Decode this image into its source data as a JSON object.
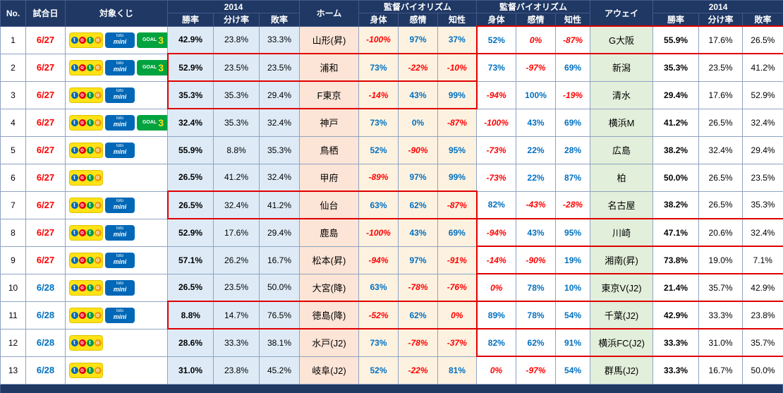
{
  "header": {
    "no": "No.",
    "date": "試合日",
    "lottery": "対象くじ",
    "season_home": "2014",
    "season_away": "2014",
    "home": "ホーム",
    "away": "アウェイ",
    "bio_home": "監督バイオリズム",
    "bio_away": "監督バイオリズム",
    "win": "勝率",
    "draw": "分け率",
    "loss": "敗率",
    "body": "身体",
    "emotion": "感情",
    "intellect": "知性"
  },
  "badges": {
    "toto": "toto",
    "mini_top": "toto",
    "mini_bottom": "mini",
    "goal3_text": "GOAL",
    "goal3_num": "3"
  },
  "colors": {
    "header_bg": "#1F3864",
    "date_early": "#FF0000",
    "date_late": "#0070C0",
    "bio_positive": "#0070C0",
    "bio_negative": "#FF0000",
    "highlight_box": "#E00000"
  },
  "rows": [
    {
      "no": "1",
      "date": "6/27",
      "date_color": "red",
      "lotteries": [
        "toto",
        "mini",
        "goal3"
      ],
      "home_stats": [
        "42.9%",
        "23.8%",
        "33.3%"
      ],
      "home_team": "山形(昇)",
      "home_bio": [
        {
          "v": "-100%",
          "neg": true
        },
        {
          "v": "97%",
          "neg": false
        },
        {
          "v": "37%",
          "neg": false
        }
      ],
      "away_bio": [
        {
          "v": "52%",
          "neg": false
        },
        {
          "v": "0%",
          "neg": true
        },
        {
          "v": "-87%",
          "neg": true
        }
      ],
      "away_team": "G大阪",
      "away_stats": [
        "55.9%",
        "17.6%",
        "26.5%"
      ],
      "highlight": "away"
    },
    {
      "no": "2",
      "date": "6/27",
      "date_color": "red",
      "lotteries": [
        "toto",
        "mini",
        "goal3"
      ],
      "home_stats": [
        "52.9%",
        "23.5%",
        "23.5%"
      ],
      "home_team": "浦和",
      "home_bio": [
        {
          "v": "73%",
          "neg": false
        },
        {
          "v": "-22%",
          "neg": true
        },
        {
          "v": "-10%",
          "neg": true
        }
      ],
      "away_bio": [
        {
          "v": "73%",
          "neg": false
        },
        {
          "v": "-97%",
          "neg": true
        },
        {
          "v": "69%",
          "neg": false
        }
      ],
      "away_team": "新潟",
      "away_stats": [
        "35.3%",
        "23.5%",
        "41.2%"
      ],
      "highlight": "home"
    },
    {
      "no": "3",
      "date": "6/27",
      "date_color": "red",
      "lotteries": [
        "toto",
        "mini"
      ],
      "home_stats": [
        "35.3%",
        "35.3%",
        "29.4%"
      ],
      "home_team": "F東京",
      "home_bio": [
        {
          "v": "-14%",
          "neg": true
        },
        {
          "v": "43%",
          "neg": false
        },
        {
          "v": "99%",
          "neg": false
        }
      ],
      "away_bio": [
        {
          "v": "-94%",
          "neg": true
        },
        {
          "v": "100%",
          "neg": false
        },
        {
          "v": "-19%",
          "neg": true
        }
      ],
      "away_team": "清水",
      "away_stats": [
        "29.4%",
        "17.6%",
        "52.9%"
      ],
      "highlight": "home"
    },
    {
      "no": "4",
      "date": "6/27",
      "date_color": "red",
      "lotteries": [
        "toto",
        "mini",
        "goal3"
      ],
      "home_stats": [
        "32.4%",
        "35.3%",
        "32.4%"
      ],
      "home_team": "神戸",
      "home_bio": [
        {
          "v": "73%",
          "neg": false
        },
        {
          "v": "0%",
          "neg": false
        },
        {
          "v": "-87%",
          "neg": true
        }
      ],
      "away_bio": [
        {
          "v": "-100%",
          "neg": true
        },
        {
          "v": "43%",
          "neg": false
        },
        {
          "v": "69%",
          "neg": false
        }
      ],
      "away_team": "横浜M",
      "away_stats": [
        "41.2%",
        "26.5%",
        "32.4%"
      ],
      "highlight": null
    },
    {
      "no": "5",
      "date": "6/27",
      "date_color": "red",
      "lotteries": [
        "toto",
        "mini"
      ],
      "home_stats": [
        "55.9%",
        "8.8%",
        "35.3%"
      ],
      "home_team": "鳥栖",
      "home_bio": [
        {
          "v": "52%",
          "neg": false
        },
        {
          "v": "-90%",
          "neg": true
        },
        {
          "v": "95%",
          "neg": false
        }
      ],
      "away_bio": [
        {
          "v": "-73%",
          "neg": true
        },
        {
          "v": "22%",
          "neg": false
        },
        {
          "v": "28%",
          "neg": false
        }
      ],
      "away_team": "広島",
      "away_stats": [
        "38.2%",
        "32.4%",
        "29.4%"
      ],
      "highlight": null
    },
    {
      "no": "6",
      "date": "6/27",
      "date_color": "red",
      "lotteries": [
        "toto"
      ],
      "home_stats": [
        "26.5%",
        "41.2%",
        "32.4%"
      ],
      "home_team": "甲府",
      "home_bio": [
        {
          "v": "-89%",
          "neg": true
        },
        {
          "v": "97%",
          "neg": false
        },
        {
          "v": "99%",
          "neg": false
        }
      ],
      "away_bio": [
        {
          "v": "-73%",
          "neg": true
        },
        {
          "v": "22%",
          "neg": false
        },
        {
          "v": "87%",
          "neg": false
        }
      ],
      "away_team": "柏",
      "away_stats": [
        "50.0%",
        "26.5%",
        "23.5%"
      ],
      "highlight": null
    },
    {
      "no": "7",
      "date": "6/27",
      "date_color": "red",
      "lotteries": [
        "toto",
        "mini"
      ],
      "home_stats": [
        "26.5%",
        "32.4%",
        "41.2%"
      ],
      "home_team": "仙台",
      "home_bio": [
        {
          "v": "63%",
          "neg": false
        },
        {
          "v": "62%",
          "neg": false
        },
        {
          "v": "-87%",
          "neg": true
        }
      ],
      "away_bio": [
        {
          "v": "82%",
          "neg": false
        },
        {
          "v": "-43%",
          "neg": true
        },
        {
          "v": "-28%",
          "neg": true
        }
      ],
      "away_team": "名古屋",
      "away_stats": [
        "38.2%",
        "26.5%",
        "35.3%"
      ],
      "highlight": "home"
    },
    {
      "no": "8",
      "date": "6/27",
      "date_color": "red",
      "lotteries": [
        "toto",
        "mini"
      ],
      "home_stats": [
        "52.9%",
        "17.6%",
        "29.4%"
      ],
      "home_team": "鹿島",
      "home_bio": [
        {
          "v": "-100%",
          "neg": true
        },
        {
          "v": "43%",
          "neg": false
        },
        {
          "v": "69%",
          "neg": false
        }
      ],
      "away_bio": [
        {
          "v": "-94%",
          "neg": true
        },
        {
          "v": "43%",
          "neg": false
        },
        {
          "v": "95%",
          "neg": false
        }
      ],
      "away_team": "川崎",
      "away_stats": [
        "47.1%",
        "20.6%",
        "32.4%"
      ],
      "highlight": "away"
    },
    {
      "no": "9",
      "date": "6/27",
      "date_color": "red",
      "lotteries": [
        "toto",
        "mini"
      ],
      "home_stats": [
        "57.1%",
        "26.2%",
        "16.7%"
      ],
      "home_team": "松本(昇)",
      "home_bio": [
        {
          "v": "-94%",
          "neg": true
        },
        {
          "v": "97%",
          "neg": false
        },
        {
          "v": "-91%",
          "neg": true
        }
      ],
      "away_bio": [
        {
          "v": "-14%",
          "neg": true
        },
        {
          "v": "-90%",
          "neg": true
        },
        {
          "v": "19%",
          "neg": false
        }
      ],
      "away_team": "湘南(昇)",
      "away_stats": [
        "73.8%",
        "19.0%",
        "7.1%"
      ],
      "highlight": "away"
    },
    {
      "no": "10",
      "date": "6/28",
      "date_color": "blue",
      "lotteries": [
        "toto",
        "mini"
      ],
      "home_stats": [
        "26.5%",
        "23.5%",
        "50.0%"
      ],
      "home_team": "大宮(降)",
      "home_bio": [
        {
          "v": "63%",
          "neg": false
        },
        {
          "v": "-78%",
          "neg": true
        },
        {
          "v": "-76%",
          "neg": true
        }
      ],
      "away_bio": [
        {
          "v": "0%",
          "neg": true
        },
        {
          "v": "78%",
          "neg": false
        },
        {
          "v": "10%",
          "neg": false
        }
      ],
      "away_team": "東京V(J2)",
      "away_stats": [
        "21.4%",
        "35.7%",
        "42.9%"
      ],
      "highlight": "away"
    },
    {
      "no": "11",
      "date": "6/28",
      "date_color": "blue",
      "lotteries": [
        "toto",
        "mini"
      ],
      "home_stats": [
        "8.8%",
        "14.7%",
        "76.5%"
      ],
      "home_team": "徳島(降)",
      "home_bio": [
        {
          "v": "-52%",
          "neg": true
        },
        {
          "v": "62%",
          "neg": false
        },
        {
          "v": "0%",
          "neg": true
        }
      ],
      "away_bio": [
        {
          "v": "89%",
          "neg": false
        },
        {
          "v": "78%",
          "neg": false
        },
        {
          "v": "54%",
          "neg": false
        }
      ],
      "away_team": "千葉(J2)",
      "away_stats": [
        "42.9%",
        "33.3%",
        "23.8%"
      ],
      "highlight": "home"
    },
    {
      "no": "12",
      "date": "6/28",
      "date_color": "blue",
      "lotteries": [
        "toto"
      ],
      "home_stats": [
        "28.6%",
        "33.3%",
        "38.1%"
      ],
      "home_team": "水戸(J2)",
      "home_bio": [
        {
          "v": "73%",
          "neg": false
        },
        {
          "v": "-78%",
          "neg": true
        },
        {
          "v": "-37%",
          "neg": true
        }
      ],
      "away_bio": [
        {
          "v": "82%",
          "neg": false
        },
        {
          "v": "62%",
          "neg": false
        },
        {
          "v": "91%",
          "neg": false
        }
      ],
      "away_team": "横浜FC(J2)",
      "away_stats": [
        "33.3%",
        "31.0%",
        "35.7%"
      ],
      "highlight": "away"
    },
    {
      "no": "13",
      "date": "6/28",
      "date_color": "blue",
      "lotteries": [
        "toto"
      ],
      "home_stats": [
        "31.0%",
        "23.8%",
        "45.2%"
      ],
      "home_team": "岐阜(J2)",
      "home_bio": [
        {
          "v": "52%",
          "neg": false
        },
        {
          "v": "-22%",
          "neg": true
        },
        {
          "v": "81%",
          "neg": false
        }
      ],
      "away_bio": [
        {
          "v": "0%",
          "neg": true
        },
        {
          "v": "-97%",
          "neg": true
        },
        {
          "v": "54%",
          "neg": false
        }
      ],
      "away_team": "群馬(J2)",
      "away_stats": [
        "33.3%",
        "16.7%",
        "50.0%"
      ],
      "highlight": null
    }
  ]
}
